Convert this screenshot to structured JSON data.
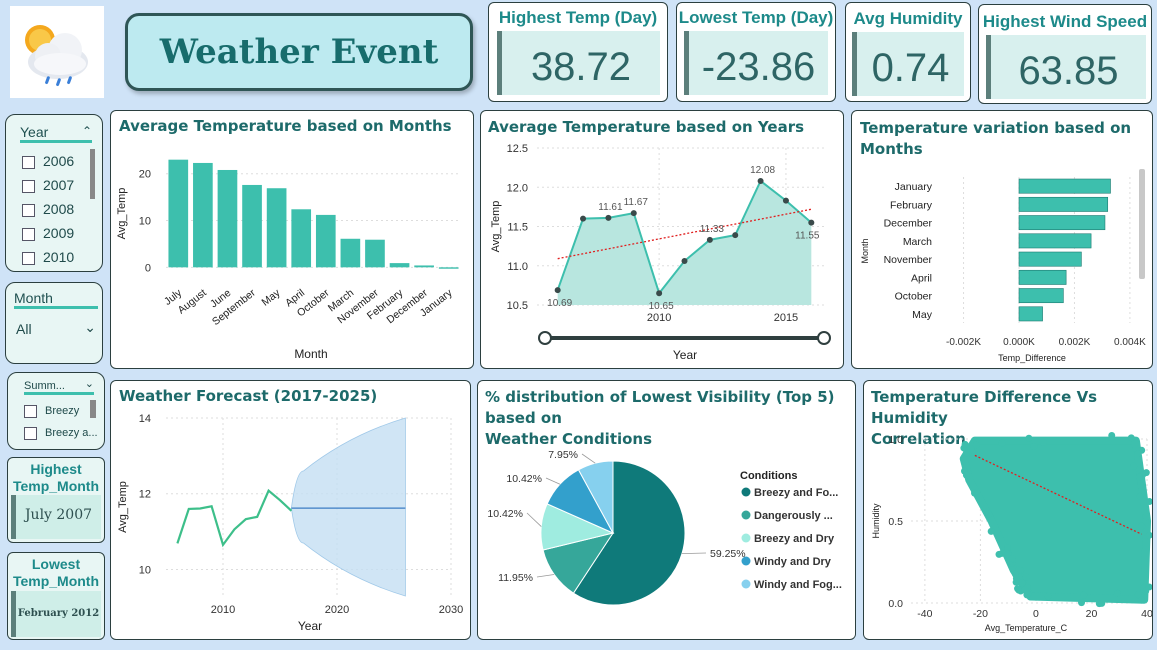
{
  "header": {
    "title": "Weather Event",
    "logo_icon": "weather-cloud-sun-rain-icon"
  },
  "kpis": [
    {
      "label": "Highest Temp (Day)",
      "value": "38.72"
    },
    {
      "label": "Lowest Temp (Day)",
      "value": "-23.86"
    },
    {
      "label": "Avg Humidity",
      "value": "0.74"
    },
    {
      "label": "Highest Wind Speed",
      "value": "63.85"
    }
  ],
  "slicers": {
    "year": {
      "label": "Year",
      "items": [
        "2006",
        "2007",
        "2008",
        "2009",
        "2010"
      ]
    },
    "month": {
      "label": "Month",
      "selected": "All"
    },
    "summary": {
      "label": "Summ...",
      "items": [
        "Breezy",
        "Breezy a..."
      ]
    }
  },
  "cards": {
    "highest_temp_month": {
      "label_line1": "Highest",
      "label_line2": "Temp_Month",
      "value": "July 2007"
    },
    "lowest_temp_month": {
      "label_line1": "Lowest",
      "label_line2": "Temp_Month",
      "value": "February 2012"
    }
  },
  "charts": {
    "months": {
      "title": "Average Temperature based on Months"
    },
    "years": {
      "title": "Average Temperature based on Years"
    },
    "variation": {
      "title_line1": "Temperature variation based on",
      "title_line2": "Months"
    },
    "forecast": {
      "title": "Weather Forecast (2017-2025)"
    },
    "visibility": {
      "title_line1": "% distribution of Lowest Visibility (Top 5) based on",
      "title_line2": "Weather Conditions"
    },
    "correlation": {
      "title_line1": "Temperature Difference Vs Humidity",
      "title_line2": "Correlation"
    }
  },
  "colors": {
    "teal": "#3dbfad",
    "dark_teal": "#0f7a7a",
    "trend": "#e02020",
    "forecast_band": "#c4dff2",
    "forecast_line": "#3a7cc4"
  },
  "chart_data": [
    {
      "type": "bar",
      "title": "Average Temperature based on Months",
      "xlabel": "Month",
      "ylabel": "Avg_Temp",
      "ylim": [
        -1,
        24
      ],
      "yticks": [
        0,
        10,
        20
      ],
      "categories": [
        "July",
        "August",
        "June",
        "September",
        "May",
        "April",
        "October",
        "March",
        "November",
        "February",
        "December",
        "January"
      ],
      "values": [
        23,
        22.3,
        20.8,
        17.6,
        16.9,
        12.4,
        11.2,
        6.1,
        5.9,
        0.9,
        0.4,
        -0.3
      ]
    },
    {
      "type": "area",
      "title": "Average Temperature based on Years",
      "xlabel": "Year",
      "ylabel": "Avg_Temp",
      "xlim": [
        2005.5,
        2016.5
      ],
      "ylim": [
        10.5,
        12.5
      ],
      "xticks": [
        2010,
        2015
      ],
      "yticks": [
        10.5,
        11.0,
        11.5,
        12.0,
        12.5
      ],
      "x": [
        2006,
        2007,
        2008,
        2009,
        2010,
        2011,
        2012,
        2013,
        2014,
        2015,
        2016
      ],
      "y": [
        10.69,
        11.6,
        11.61,
        11.67,
        10.65,
        11.06,
        11.33,
        11.39,
        12.08,
        11.83,
        11.55
      ],
      "point_labels": [
        "10.69",
        "",
        "11.61",
        "11.67",
        "10.65",
        "",
        "11.33",
        "",
        "12.08",
        "",
        "11.55"
      ],
      "trendline": [
        11.09,
        11.72
      ],
      "grid": true
    },
    {
      "type": "bar",
      "orientation": "horizontal",
      "title": "Temperature variation based on Months",
      "xlabel": "Temp_Difference",
      "ylabel": "Month",
      "xlim": [
        -2.2,
        4.4
      ],
      "xticks": [
        -2,
        0,
        2,
        4
      ],
      "xtick_labels": [
        "-0.002K",
        "0.000K",
        "0.002K",
        "0.004K"
      ],
      "categories": [
        "January",
        "February",
        "December",
        "March",
        "November",
        "April",
        "October",
        "May"
      ],
      "values": [
        3.3,
        3.2,
        3.1,
        2.6,
        2.25,
        1.7,
        1.6,
        0.85
      ]
    },
    {
      "type": "line",
      "title": "Weather Forecast (2017-2025)",
      "xlabel": "Year",
      "ylabel": "Avg_Temp",
      "xlim": [
        2005,
        2030
      ],
      "ylim": [
        9.3,
        14
      ],
      "xticks": [
        2010,
        2020,
        2030
      ],
      "yticks": [
        10,
        12,
        14
      ],
      "x": [
        2006,
        2007,
        2008,
        2009,
        2010,
        2011,
        2012,
        2013,
        2014,
        2015,
        2016
      ],
      "y": [
        10.69,
        11.6,
        11.61,
        11.67,
        10.65,
        11.06,
        11.33,
        11.39,
        12.08,
        11.83,
        11.55
      ],
      "forecast": {
        "x": [
          2016,
          2026
        ],
        "value": 11.62,
        "upper_start": 12.6,
        "upper_end": 14.0,
        "lower_start": 10.7,
        "lower_end": 9.3
      },
      "grid": true
    },
    {
      "type": "pie",
      "title": "% distribution of Lowest Visibility (Top 5) based on Weather Conditions",
      "legend_title": "Conditions",
      "legend_position": "right",
      "series": [
        {
          "name": "Breezy and Fo...",
          "value": 59.25,
          "label": "59.25%",
          "color": "#0f7a7a"
        },
        {
          "name": "Dangerously ...",
          "value": 11.95,
          "label": "11.95%",
          "color": "#36a79a"
        },
        {
          "name": "Breezy and Dry",
          "value": 10.42,
          "label": "10.42%",
          "color": "#9fece0"
        },
        {
          "name": "Windy and Dry",
          "value": 10.42,
          "label": "10.42%",
          "color": "#33a0cc"
        },
        {
          "name": "Windy and Fog...",
          "value": 7.95,
          "label": "7.95%",
          "color": "#86d0ee"
        }
      ]
    },
    {
      "type": "scatter",
      "title": "Temperature Difference Vs Humidity Correlation",
      "xlabel": "Avg_Temperature_C",
      "ylabel": "Humidity",
      "xlim": [
        -45,
        40
      ],
      "ylim": [
        0,
        1
      ],
      "xticks": [
        -40,
        -20,
        0,
        20,
        40
      ],
      "yticks": [
        0.0,
        0.5,
        1.0
      ],
      "ytick_labels": [
        "0.0",
        "0.5",
        "1.0"
      ],
      "trendline": [
        [
          -22,
          0.9
        ],
        [
          38,
          0.42
        ]
      ],
      "cloud_outline": [
        [
          -22,
          0.99
        ],
        [
          36,
          0.99
        ],
        [
          40,
          0.5
        ],
        [
          39,
          0.02
        ],
        [
          -2,
          0.04
        ],
        [
          -8,
          0.2
        ],
        [
          -16,
          0.5
        ],
        [
          -24,
          0.75
        ],
        [
          -26,
          0.88
        ]
      ],
      "grid": true
    }
  ]
}
